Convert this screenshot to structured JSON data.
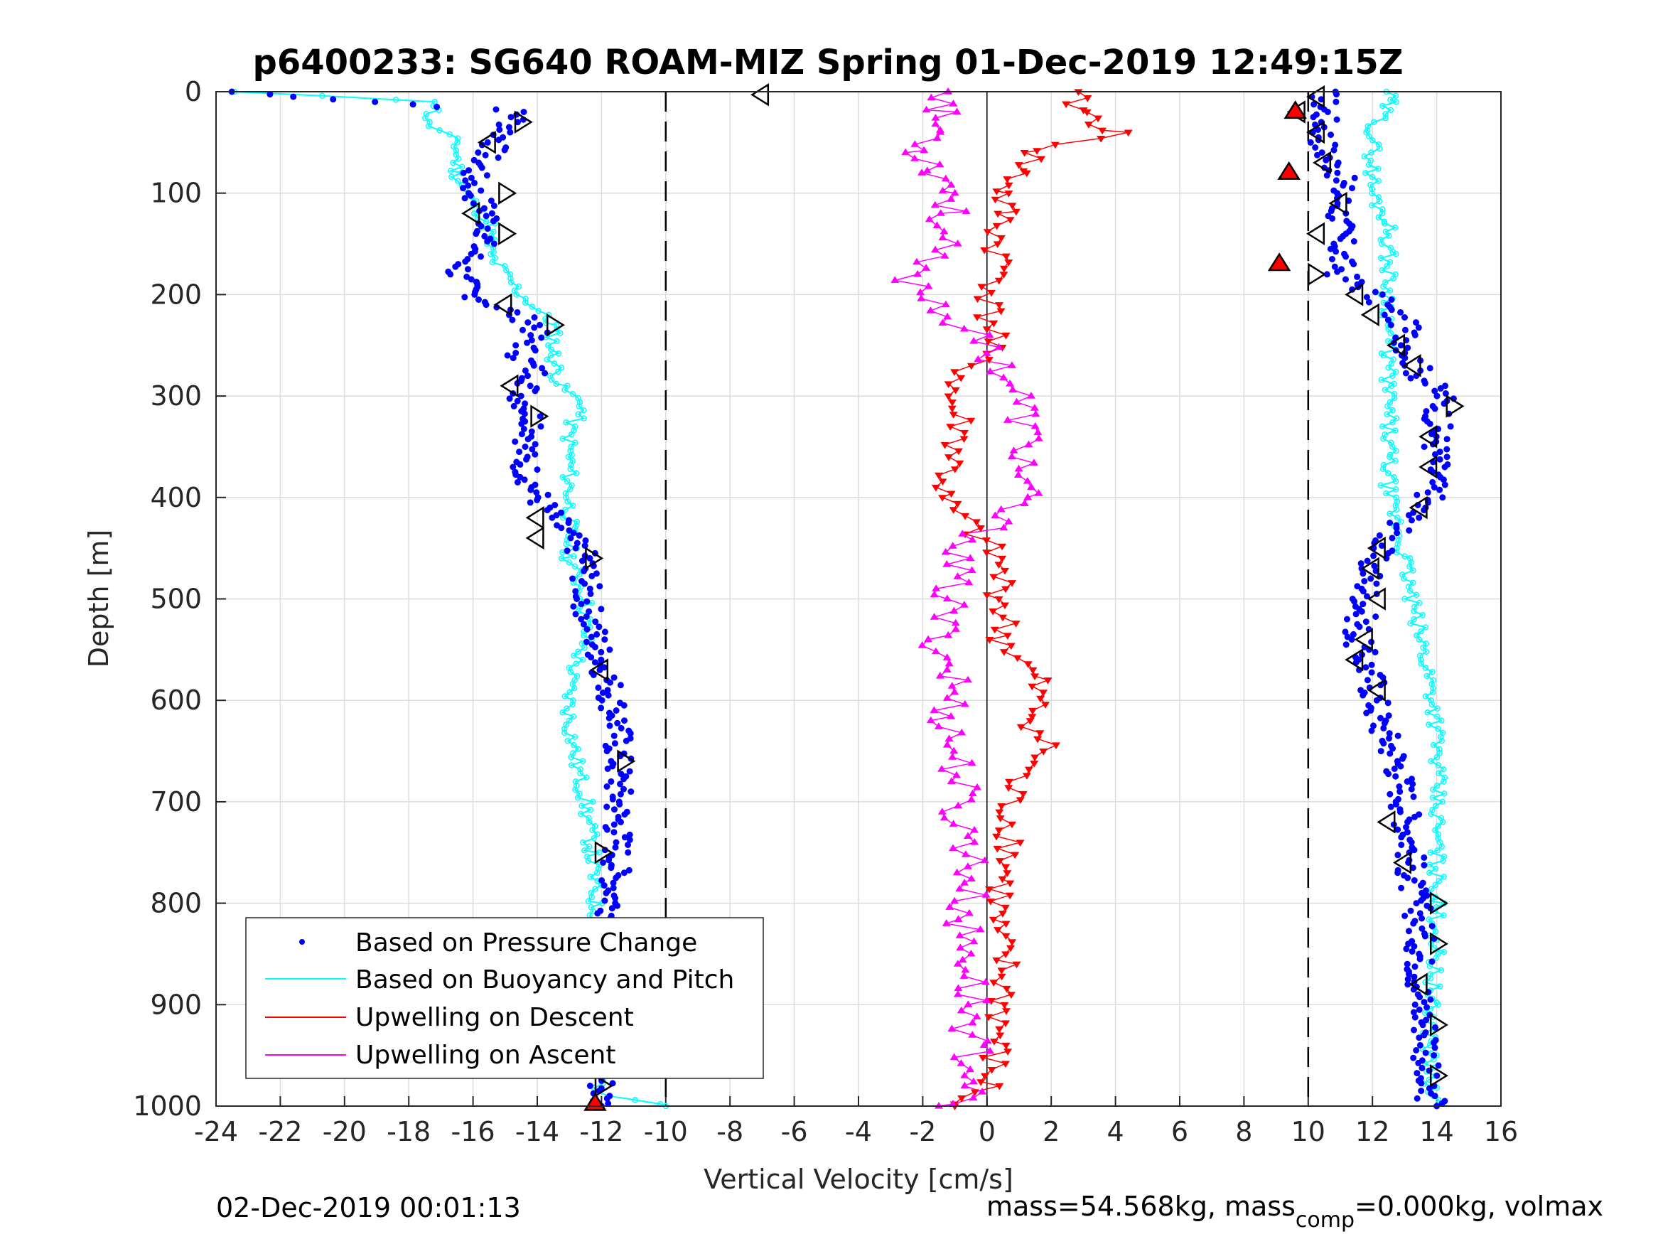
{
  "chart_data": {
    "type": "scatter",
    "title": "p6400233: SG640 ROAM-MIZ Spring 01-Dec-2019 12:49:15Z",
    "xlabel": "Vertical Velocity [cm/s]",
    "ylabel": "Depth [m]",
    "xlim": [
      -24,
      16
    ],
    "ylim": [
      0,
      1000
    ],
    "y_reversed": true,
    "grid": true,
    "x_ticks": [
      "-24",
      "-22",
      "-20",
      "-18",
      "-16",
      "-14",
      "-12",
      "-10",
      "-8",
      "-6",
      "-4",
      "-2",
      "0",
      "2",
      "4",
      "6",
      "8",
      "10",
      "12",
      "14",
      "16"
    ],
    "y_ticks": [
      "0",
      "100",
      "200",
      "300",
      "400",
      "500",
      "600",
      "700",
      "800",
      "900",
      "1000"
    ],
    "reference_lines_x": [
      -10,
      10
    ],
    "zero_line_x": 0,
    "legend_position": "bottom-left",
    "series": [
      {
        "name": "Based on Pressure Change",
        "color": "#0000ff",
        "style": "dots",
        "descent": {
          "depth": [
            0,
            20,
            40,
            60,
            80,
            100,
            120,
            140,
            160,
            180,
            200,
            230,
            260,
            280,
            300,
            330,
            360,
            400,
            440,
            460,
            500,
            540,
            580,
            620,
            660,
            700,
            740,
            780,
            820,
            860,
            900,
            940,
            980,
            1000
          ],
          "velocity": [
            -23.5,
            -14.5,
            -15,
            -15.5,
            -16,
            -16,
            -15.5,
            -15.5,
            -16,
            -16.5,
            -16,
            -14,
            -14.5,
            -14,
            -14.5,
            -14,
            -14.5,
            -14,
            -13,
            -12.5,
            -12.5,
            -12.2,
            -11.8,
            -11.5,
            -11.5,
            -11.5,
            -11.5,
            -11.6,
            -11.7,
            -11.6,
            -11.5,
            -11.7,
            -12,
            -12
          ]
        },
        "ascent": {
          "depth": [
            0,
            20,
            40,
            60,
            80,
            100,
            120,
            140,
            160,
            180,
            200,
            230,
            260,
            280,
            300,
            330,
            360,
            400,
            440,
            460,
            500,
            540,
            580,
            620,
            660,
            700,
            740,
            780,
            820,
            860,
            900,
            940,
            980,
            1000
          ],
          "velocity": [
            10.5,
            10.5,
            10.5,
            10.5,
            11,
            11,
            11,
            11,
            11,
            11,
            12,
            13,
            13.2,
            13.5,
            14.2,
            14,
            14,
            13.8,
            12.5,
            12,
            11.8,
            11.5,
            12,
            12.2,
            12.8,
            13,
            13.2,
            13.2,
            13.5,
            13.5,
            13.5,
            13.8,
            13.5,
            14
          ]
        }
      },
      {
        "name": "Based on Buoyancy and Pitch",
        "color": "#00ffff",
        "style": "line-circles",
        "descent": {
          "depth": [
            0,
            10,
            30,
            50,
            80,
            100,
            130,
            160,
            200,
            230,
            260,
            290,
            310,
            330,
            360,
            400,
            430,
            460,
            500,
            540,
            580,
            620,
            660,
            700,
            750,
            800,
            850,
            900,
            950,
            990,
            1000
          ],
          "velocity": [
            -23.5,
            -17,
            -17.5,
            -16.5,
            -16.5,
            -16.2,
            -15.5,
            -15.5,
            -14.5,
            -13.5,
            -13.5,
            -13.3,
            -12.5,
            -13,
            -13,
            -13,
            -13,
            -13,
            -12.5,
            -12.5,
            -13,
            -13,
            -12.8,
            -12.5,
            -12.3,
            -12.2,
            -12,
            -12,
            -12,
            -12,
            -10
          ]
        },
        "ascent": {
          "depth": [
            0,
            10,
            40,
            80,
            100,
            130,
            160,
            200,
            230,
            260,
            290,
            330,
            360,
            400,
            430,
            460,
            500,
            540,
            580,
            620,
            660,
            700,
            750,
            800,
            850,
            900,
            950,
            990,
            1000
          ],
          "velocity": [
            12.5,
            12.5,
            12,
            12,
            12,
            12.5,
            12.5,
            12.5,
            12.5,
            12.5,
            12.5,
            12.5,
            12.5,
            12.5,
            12.8,
            13,
            13.2,
            13.5,
            13.8,
            14,
            14,
            14,
            14,
            14,
            14,
            13.8,
            13.8,
            13.8,
            14
          ]
        }
      },
      {
        "name": "Upwelling on Descent",
        "color": "#ff0000",
        "style": "line-down-triangles",
        "depth": [
          0,
          20,
          40,
          60,
          80,
          100,
          120,
          150,
          180,
          210,
          240,
          270,
          300,
          330,
          360,
          400,
          430,
          460,
          500,
          540,
          580,
          620,
          650,
          680,
          710,
          740,
          780,
          820,
          860,
          900,
          940,
          980,
          1000
        ],
        "velocity": [
          2.5,
          3,
          4,
          1.5,
          1,
          0.5,
          0.5,
          0.3,
          0.5,
          0,
          0.3,
          -0.5,
          -1.2,
          -0.8,
          -1,
          -1.5,
          -0.5,
          0.3,
          0.5,
          0.5,
          1.5,
          1.5,
          1.8,
          0.8,
          0.7,
          0.8,
          0.5,
          0.2,
          0.5,
          0.5,
          0.3,
          0,
          -1
        ]
      },
      {
        "name": "Upwelling on Ascent",
        "color": "#ff00ff",
        "style": "line-up-triangles",
        "depth": [
          0,
          20,
          40,
          60,
          80,
          100,
          120,
          150,
          180,
          210,
          240,
          270,
          300,
          330,
          360,
          400,
          430,
          460,
          500,
          540,
          580,
          620,
          650,
          680,
          710,
          740,
          780,
          820,
          860,
          900,
          940,
          980,
          1000
        ],
        "velocity": [
          -1,
          -1.5,
          -1.5,
          -2,
          -1.5,
          -1,
          -1.2,
          -1.5,
          -2.5,
          -1.5,
          -0.5,
          0.5,
          1,
          1.2,
          1.2,
          1,
          0,
          -1,
          -1.2,
          -1.5,
          -1,
          -1.2,
          -1,
          -0.8,
          -1,
          -0.5,
          -0.5,
          -0.8,
          -0.5,
          -0.5,
          -0.5,
          -0.3,
          -1.5
        ]
      }
    ],
    "triangle_markers": {
      "descent": {
        "depth": [
          30,
          50,
          100,
          120,
          140,
          210,
          230,
          290,
          320,
          420,
          440,
          460,
          570,
          660,
          750,
          980
        ],
        "velocity": [
          -14.5,
          -15.5,
          -15,
          -16,
          -15,
          -15,
          -13.5,
          -14.8,
          -14,
          -14,
          -14,
          -12.3,
          -12,
          -11.3,
          -12,
          -12
        ],
        "direction": [
          "right",
          "left",
          "right",
          "left",
          "right",
          "left",
          "right",
          "left",
          "right",
          "left",
          "left",
          "right",
          "left",
          "right",
          "right",
          "right"
        ]
      },
      "ascent": {
        "depth": [
          5,
          20,
          40,
          70,
          110,
          140,
          180,
          200,
          220,
          250,
          270,
          310,
          340,
          370,
          410,
          450,
          470,
          500,
          540,
          560,
          590,
          720,
          760,
          800,
          840,
          880,
          920,
          970
        ],
        "velocity": [
          10.3,
          9.7,
          10.3,
          10.5,
          11,
          10.3,
          10.2,
          11.5,
          12,
          12.8,
          13.3,
          14.5,
          13.8,
          13.8,
          13.5,
          12.2,
          12,
          12.2,
          11.8,
          11.5,
          12.2,
          12.5,
          13,
          14,
          14,
          13.5,
          14,
          14
        ],
        "direction": [
          "left",
          "left",
          "left",
          "left",
          "left",
          "left",
          "right",
          "left",
          "left",
          "left",
          "left",
          "right",
          "left",
          "left",
          "left",
          "left",
          "left",
          "left",
          "left",
          "left",
          "left",
          "left",
          "left",
          "right",
          "right",
          "left",
          "right",
          "right"
        ]
      },
      "near_surface_marker": {
        "depth": 3,
        "velocity": -7,
        "direction": "left"
      },
      "red_markers": [
        {
          "depth": 998,
          "velocity": -12.2
        },
        {
          "depth": 20,
          "velocity": 9.6
        },
        {
          "depth": 170,
          "velocity": 9.1
        },
        {
          "depth": 80,
          "velocity": 9.4
        }
      ]
    }
  },
  "footer": {
    "date": "02-Dec-2019 00:01:13",
    "mass_prefix": "mass=54.568kg, mass",
    "mass_sub": "comp",
    "mass_suffix": "=0.000kg, volmax"
  }
}
